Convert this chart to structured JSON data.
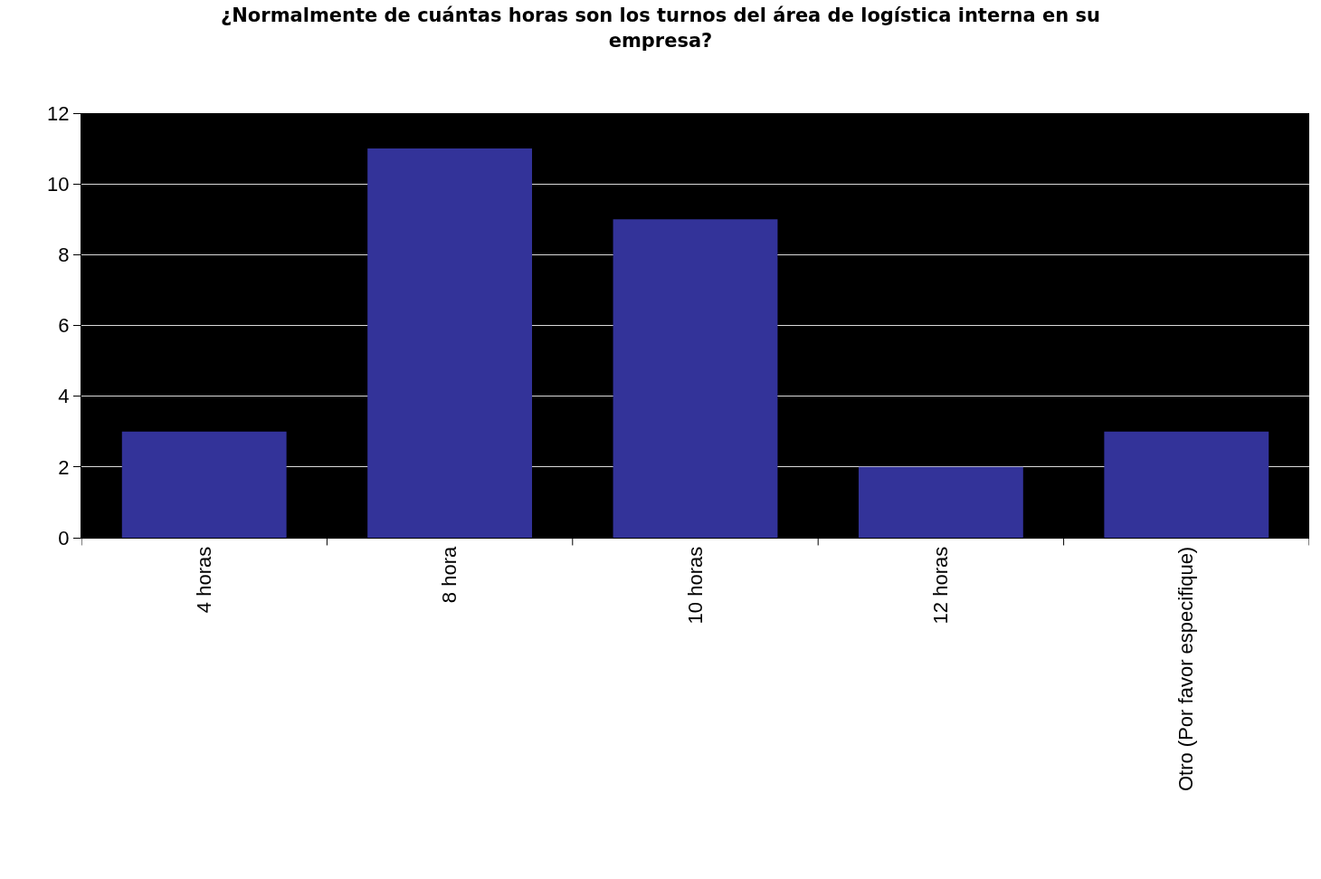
{
  "chart_data": {
    "type": "bar",
    "title": "¿Normalmente de cuántas horas son los turnos del área de logística interna en su empresa?",
    "categories": [
      "4 horas",
      "8 hora",
      "10 horas",
      "12 horas",
      "Otro (Por favor especifique)"
    ],
    "values": [
      3,
      11,
      9,
      2,
      3
    ],
    "color": "#333399",
    "ylim": [
      0,
      12
    ],
    "yticks": [
      0,
      2,
      4,
      6,
      8,
      10,
      12
    ],
    "grid": "y"
  }
}
